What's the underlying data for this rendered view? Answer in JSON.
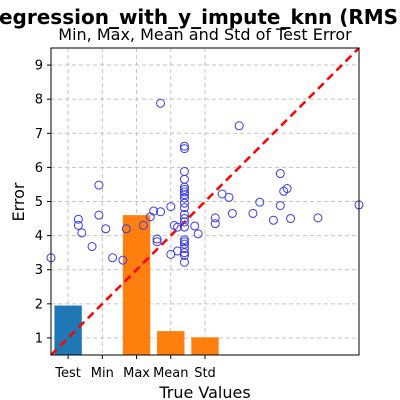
{
  "chart_data": {
    "type": "bar",
    "title": "regression_with_y_impute_knn (RMSE)",
    "subtitle": "Min, Max, Mean and Std of Test Error",
    "xlabel": "True Values",
    "ylabel": "Error",
    "ylim": [
      0.5,
      9.5
    ],
    "xlim": [
      0.5,
      9.5
    ],
    "yticks": [
      1,
      2,
      3,
      4,
      5,
      6,
      7,
      8,
      9
    ],
    "grid": true,
    "categories": [
      "Test",
      "Min",
      "Max",
      "Mean",
      "Std"
    ],
    "bars": [
      {
        "label": "Test",
        "x": 1.0,
        "value": 1.95,
        "color": "#1f77b4"
      },
      {
        "label": "Max",
        "x": 3.0,
        "value": 4.6,
        "color": "#ff7f0e"
      },
      {
        "label": "Mean",
        "x": 4.0,
        "value": 1.2,
        "color": "#ff7f0e"
      },
      {
        "label": "Std",
        "x": 5.0,
        "value": 1.02,
        "color": "#ff7f0e"
      }
    ],
    "category_positions": [
      1,
      2,
      3,
      4,
      5
    ],
    "scatter": {
      "color": "#3a3ae6",
      "points": [
        [
          0.5,
          3.35
        ],
        [
          1.3,
          4.48
        ],
        [
          1.3,
          4.3
        ],
        [
          1.4,
          4.08
        ],
        [
          1.7,
          3.68
        ],
        [
          1.9,
          5.48
        ],
        [
          1.9,
          4.6
        ],
        [
          2.1,
          4.2
        ],
        [
          2.3,
          3.35
        ],
        [
          2.6,
          3.28
        ],
        [
          2.7,
          4.2
        ],
        [
          3.2,
          4.3
        ],
        [
          3.4,
          4.55
        ],
        [
          3.5,
          4.72
        ],
        [
          3.6,
          3.9
        ],
        [
          3.6,
          3.82
        ],
        [
          3.7,
          4.7
        ],
        [
          3.7,
          7.88
        ],
        [
          4.0,
          3.45
        ],
        [
          4.0,
          4.85
        ],
        [
          4.1,
          4.3
        ],
        [
          4.2,
          4.25
        ],
        [
          4.2,
          3.55
        ],
        [
          4.4,
          6.62
        ],
        [
          4.4,
          6.55
        ],
        [
          4.4,
          5.88
        ],
        [
          4.4,
          5.65
        ],
        [
          4.4,
          5.42
        ],
        [
          4.4,
          5.35
        ],
        [
          4.4,
          5.28
        ],
        [
          4.4,
          5.2
        ],
        [
          4.4,
          5.1
        ],
        [
          4.4,
          4.95
        ],
        [
          4.4,
          4.82
        ],
        [
          4.4,
          4.62
        ],
        [
          4.4,
          4.5
        ],
        [
          4.4,
          4.4
        ],
        [
          4.4,
          4.25
        ],
        [
          4.4,
          3.88
        ],
        [
          4.4,
          3.82
        ],
        [
          4.4,
          3.75
        ],
        [
          4.4,
          3.62
        ],
        [
          4.4,
          3.5
        ],
        [
          4.4,
          3.42
        ],
        [
          4.4,
          3.22
        ],
        [
          4.7,
          4.28
        ],
        [
          4.8,
          4.05
        ],
        [
          5.3,
          4.52
        ],
        [
          5.3,
          4.35
        ],
        [
          5.5,
          5.22
        ],
        [
          5.7,
          5.12
        ],
        [
          5.8,
          4.65
        ],
        [
          6.0,
          7.22
        ],
        [
          6.4,
          4.65
        ],
        [
          6.6,
          4.98
        ],
        [
          7.0,
          4.45
        ],
        [
          7.2,
          5.82
        ],
        [
          7.2,
          4.88
        ],
        [
          7.3,
          5.3
        ],
        [
          7.4,
          5.38
        ],
        [
          7.5,
          4.5
        ],
        [
          8.3,
          4.52
        ],
        [
          9.5,
          4.9
        ]
      ]
    },
    "reference_line": {
      "from": [
        0.5,
        0.5
      ],
      "to": [
        9.5,
        9.5
      ],
      "color": "#ff0000",
      "style": "dashed"
    }
  }
}
